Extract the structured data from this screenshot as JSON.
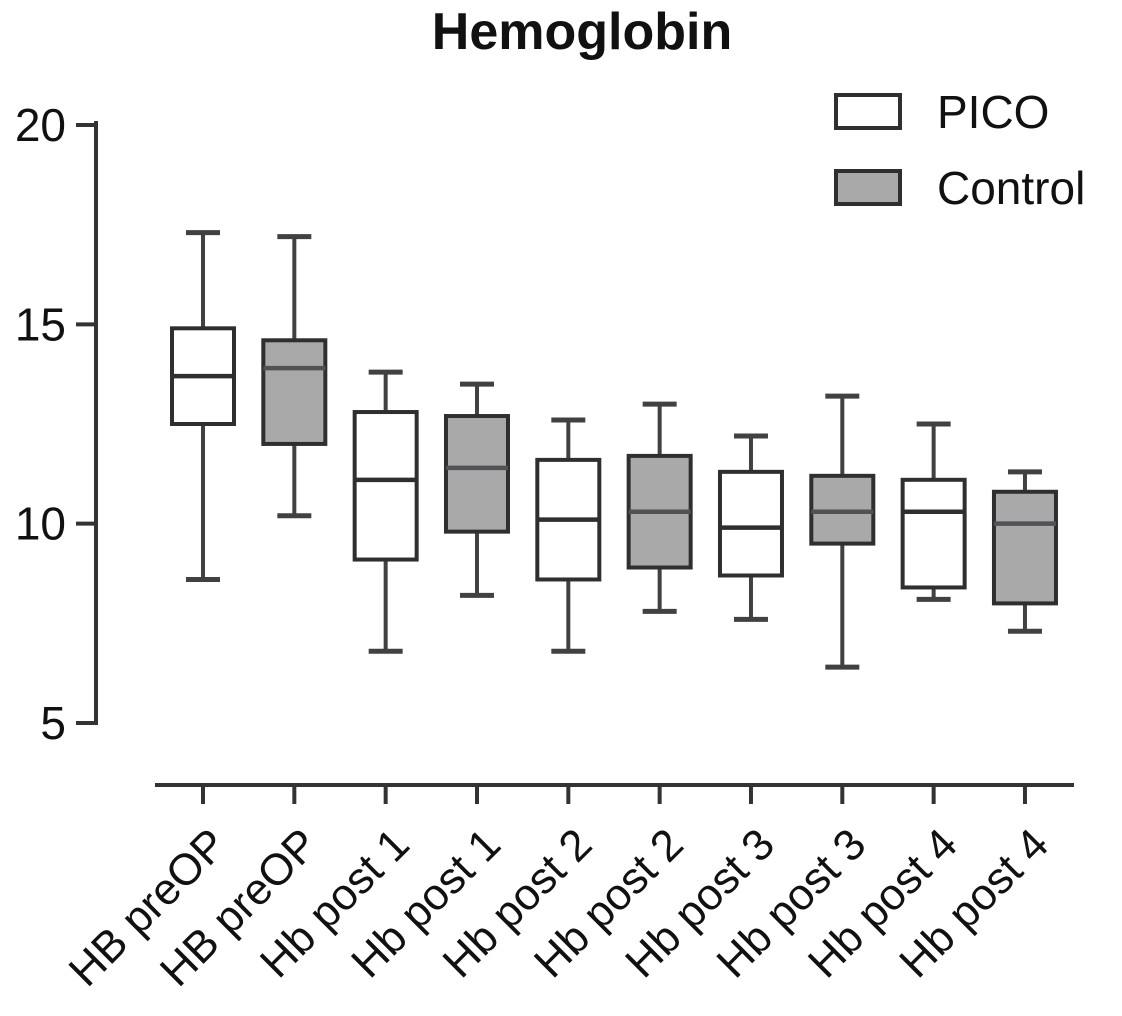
{
  "chart_data": {
    "type": "boxplot",
    "title": "Hemoglobin",
    "xlabel": "",
    "ylabel": "",
    "ylim": [
      5,
      20
    ],
    "yticks": [
      20,
      15,
      10,
      5
    ],
    "grid": false,
    "legend_position": "top-right",
    "legend": [
      {
        "label": "PICO",
        "fill": "#ffffff"
      },
      {
        "label": "Control",
        "fill": "#a9a9a9"
      }
    ],
    "categories": [
      "HB preOP",
      "HB preOP",
      "Hb post 1",
      "Hb post 1",
      "Hb post 2",
      "Hb post 2",
      "Hb post 3",
      "Hb post 3",
      "Hb post 4",
      "Hb post 4"
    ],
    "boxes": [
      {
        "label": "HB preOP",
        "series": "PICO",
        "min": 8.6,
        "q1": 12.5,
        "median": 13.7,
        "q3": 14.9,
        "max": 17.3
      },
      {
        "label": "HB preOP",
        "series": "Control",
        "min": 10.2,
        "q1": 12.0,
        "median": 13.9,
        "q3": 14.6,
        "max": 17.2
      },
      {
        "label": "Hb post 1",
        "series": "PICO",
        "min": 6.8,
        "q1": 9.1,
        "median": 11.1,
        "q3": 12.8,
        "max": 13.8
      },
      {
        "label": "Hb post 1",
        "series": "Control",
        "min": 8.2,
        "q1": 9.8,
        "median": 11.4,
        "q3": 12.7,
        "max": 13.5
      },
      {
        "label": "Hb post 2",
        "series": "PICO",
        "min": 6.8,
        "q1": 8.6,
        "median": 10.1,
        "q3": 11.6,
        "max": 12.6
      },
      {
        "label": "Hb post 2",
        "series": "Control",
        "min": 7.8,
        "q1": 8.9,
        "median": 10.3,
        "q3": 11.7,
        "max": 13.0
      },
      {
        "label": "Hb post 3",
        "series": "PICO",
        "min": 7.6,
        "q1": 8.7,
        "median": 9.9,
        "q3": 11.3,
        "max": 12.2
      },
      {
        "label": "Hb post 3",
        "series": "Control",
        "min": 6.4,
        "q1": 9.5,
        "median": 10.3,
        "q3": 11.2,
        "max": 13.2
      },
      {
        "label": "Hb post 4",
        "series": "PICO",
        "min": 8.1,
        "q1": 8.4,
        "median": 10.3,
        "q3": 11.1,
        "max": 12.5
      },
      {
        "label": "Hb post 4",
        "series": "Control",
        "min": 7.3,
        "q1": 8.0,
        "median": 10.0,
        "q3": 10.8,
        "max": 11.3
      }
    ]
  }
}
